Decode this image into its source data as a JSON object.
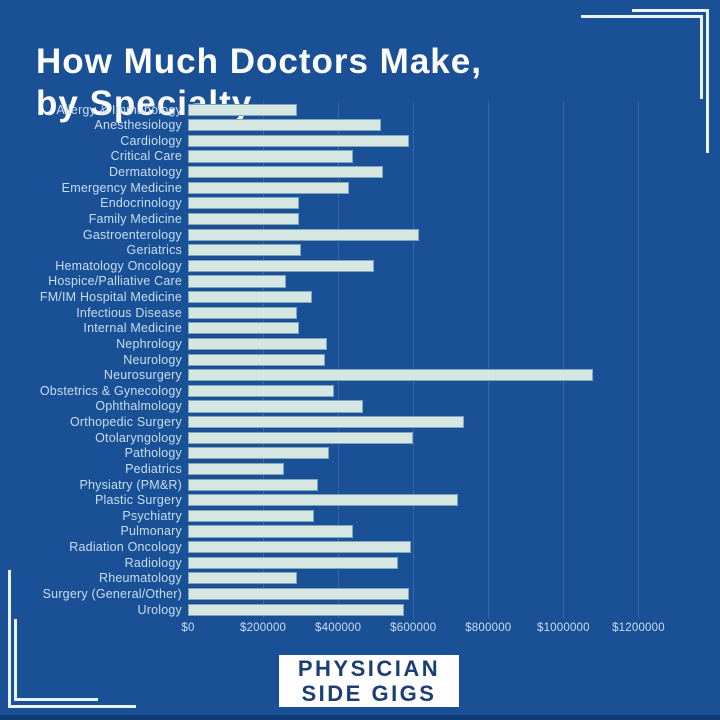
{
  "header": {
    "title_line1": "How Much Doctors Make,",
    "title_line2": "by Specialty"
  },
  "logo": {
    "line1": "PHYSICIAN",
    "line2": "SIDE GIGS"
  },
  "colors": {
    "background": "#1A5096",
    "bar_fill": "#D6E7E2",
    "bar_edge": "#7FA6BC",
    "label_text": "#C8DEF1",
    "title_text": "#FDFEFF",
    "gridline": "#3D6DAC",
    "logo_bg": "#FFFFFF",
    "logo_text": "#1C3E74",
    "corner_line": "#EAF3F9",
    "edge_strip": "#0F3A70"
  },
  "chart_data": {
    "type": "bar",
    "orientation": "horizontal",
    "title": "How Much Doctors Make, by Specialty",
    "xlabel": "",
    "ylabel": "",
    "grid": true,
    "legend": false,
    "xlim": [
      0,
      1300000
    ],
    "x_tick_values": [
      0,
      200000,
      400000,
      600000,
      800000,
      1000000,
      1200000
    ],
    "x_tick_labels": [
      "$0",
      "$200000",
      "$400000",
      "$600000",
      "$800000",
      "$1000000",
      "$1200000"
    ],
    "categories": [
      "Allergy & Immunology",
      "Anesthesiology",
      "Cardiology",
      "Critical Care",
      "Dermatology",
      "Emergency Medicine",
      "Endocrinology",
      "Family Medicine",
      "Gastroenterology",
      "Geriatrics",
      "Hematology Oncology",
      "Hospice/Palliative Care",
      "FM/IM Hospital Medicine",
      "Infectious Disease",
      "Internal Medicine",
      "Nephrology",
      "Neurology",
      "Neurosurgery",
      "Obstetrics & Gynecology",
      "Ophthalmology",
      "Orthopedic Surgery",
      "Otolaryngology",
      "Pathology",
      "Pediatrics",
      "Physiatry (PM&R)",
      "Plastic Surgery",
      "Psychiatry",
      "Pulmonary",
      "Radiation Oncology",
      "Radiology",
      "Rheumatology",
      "Surgery (General/Other)",
      "Urology"
    ],
    "values": [
      290000,
      515000,
      590000,
      440000,
      520000,
      430000,
      295000,
      295000,
      615000,
      300000,
      495000,
      260000,
      330000,
      290000,
      295000,
      370000,
      365000,
      1080000,
      390000,
      465000,
      735000,
      600000,
      375000,
      255000,
      345000,
      720000,
      335000,
      440000,
      595000,
      560000,
      290000,
      590000,
      575000
    ]
  }
}
